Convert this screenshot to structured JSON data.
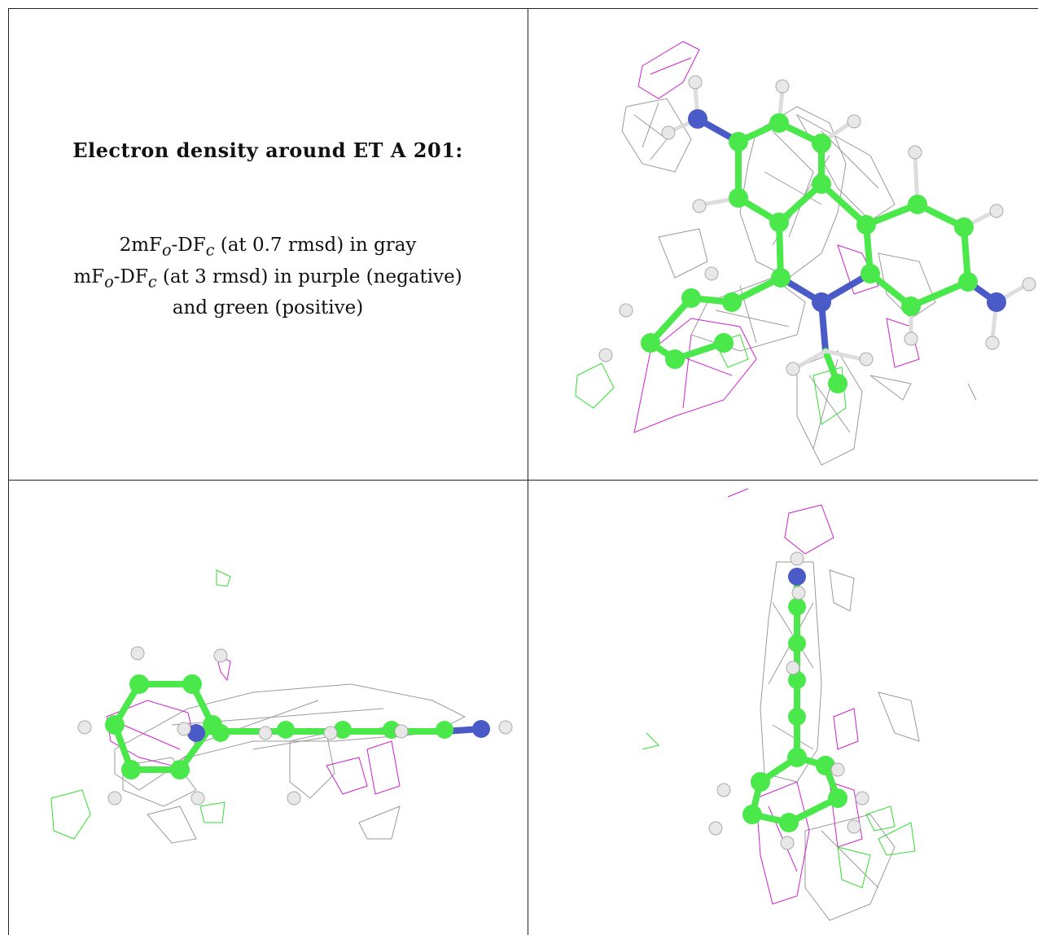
{
  "caption": {
    "title": "Electron density around ET A 201:",
    "line1_a": "2mF",
    "line1_sub1": "o",
    "line1_b": "-DF",
    "line1_sub2": "c",
    "line1_c": " (at 0.7 rmsd) in gray",
    "line2_a": "mF",
    "line2_sub1": "o",
    "line2_b": "-DF",
    "line2_sub2": "c",
    "line2_c": " (at 3 rmsd) in purple (negative)",
    "line3": "and green (positive)"
  },
  "colors": {
    "carbon": "#4ae84a",
    "nitrogen": "#4a5bc7",
    "hydrogen": "#e6e6e6",
    "density_2fofc": "#9a9a9a",
    "density_negative": "#cc22cc",
    "density_positive": "#33dd33"
  }
}
